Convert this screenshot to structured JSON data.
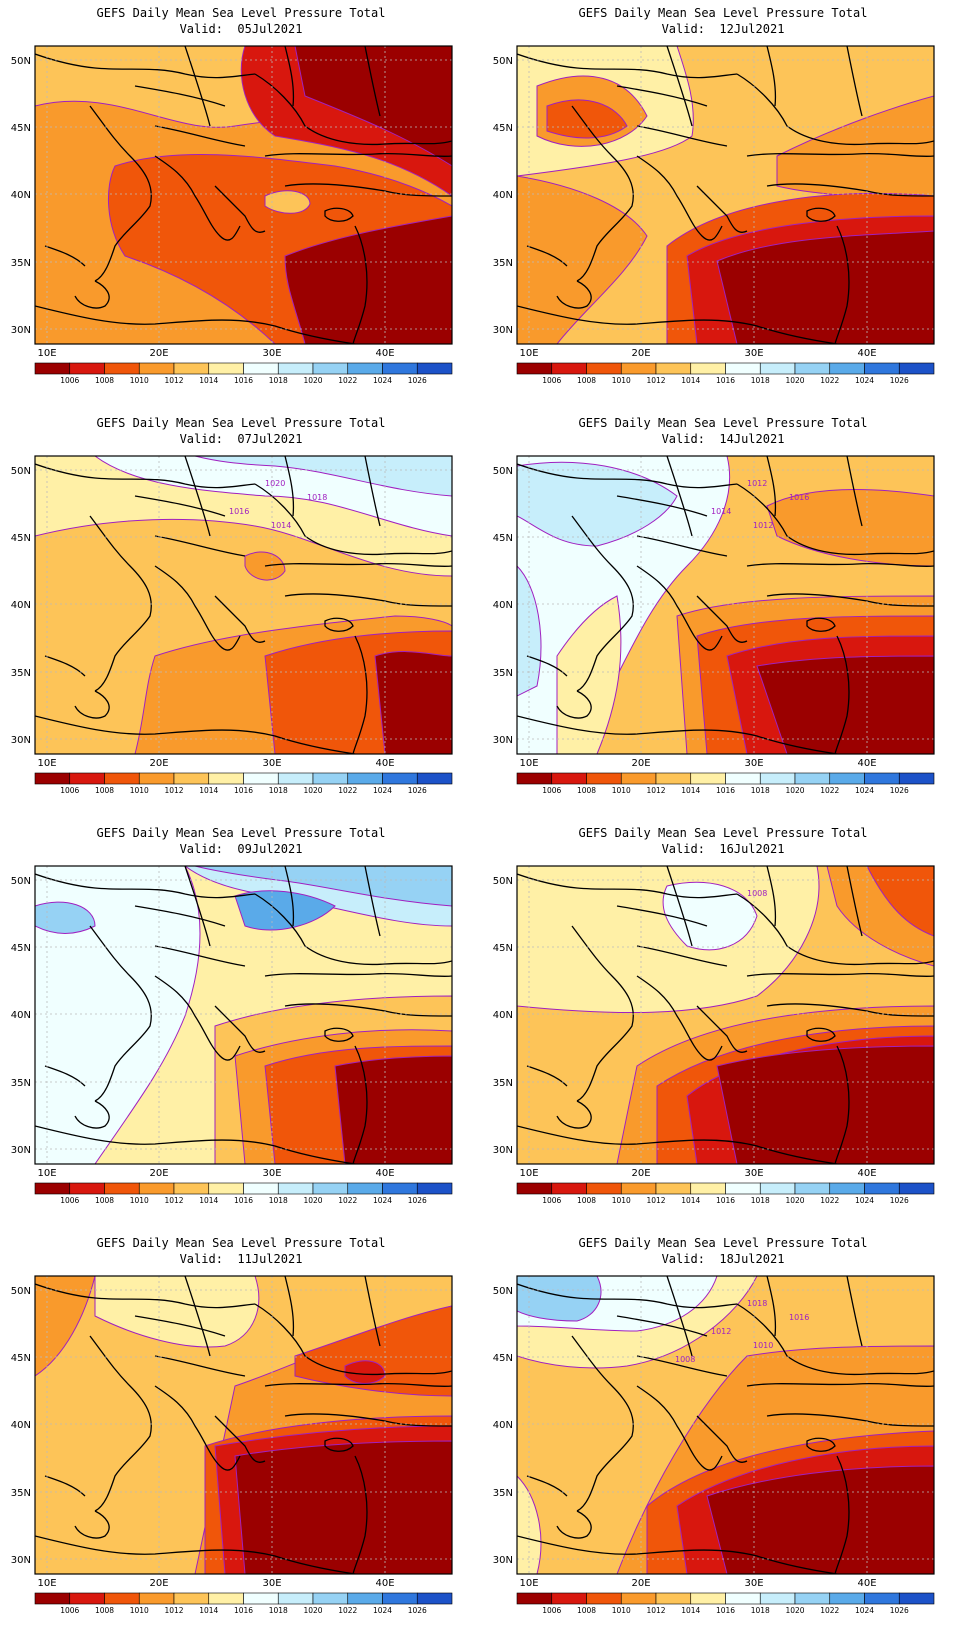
{
  "title": "GEFS Daily Mean Sea Level Pressure Total",
  "valid_prefix": "Valid:",
  "lat_labels": [
    "50N",
    "45N",
    "40N",
    "35N",
    "30N"
  ],
  "lon_labels": [
    "10E",
    "20E",
    "30E",
    "40E"
  ],
  "colorbar": {
    "labels": [
      "1006",
      "1008",
      "1010",
      "1012",
      "1014",
      "1016",
      "1018",
      "1020",
      "1022",
      "1024",
      "1026"
    ],
    "colors": [
      "#9b0000",
      "#d8170e",
      "#f0560a",
      "#f99a2c",
      "#fdc458",
      "#fff0a6",
      "#f0ffff",
      "#c7eefb",
      "#96d2f4",
      "#5aaae9",
      "#2f77dd",
      "#1c52c8"
    ]
  },
  "panels": [
    {
      "id": "p05",
      "date": "05Jul2021",
      "contour_labels": []
    },
    {
      "id": "p12",
      "date": "12Jul2021",
      "contour_labels": []
    },
    {
      "id": "p07",
      "date": "07Jul2021",
      "contour_labels": [
        "1020",
        "1018",
        "1016",
        "1014"
      ]
    },
    {
      "id": "p14",
      "date": "14Jul2021",
      "contour_labels": [
        "1012",
        "1016",
        "1014",
        "1012"
      ]
    },
    {
      "id": "p09",
      "date": "09Jul2021",
      "contour_labels": []
    },
    {
      "id": "p16",
      "date": "16Jul2021",
      "contour_labels": [
        "1008"
      ]
    },
    {
      "id": "p11",
      "date": "11Jul2021",
      "contour_labels": []
    },
    {
      "id": "p18",
      "date": "18Jul2021",
      "contour_labels": [
        "1018",
        "1016",
        "1012",
        "1010",
        "1008"
      ]
    }
  ]
}
